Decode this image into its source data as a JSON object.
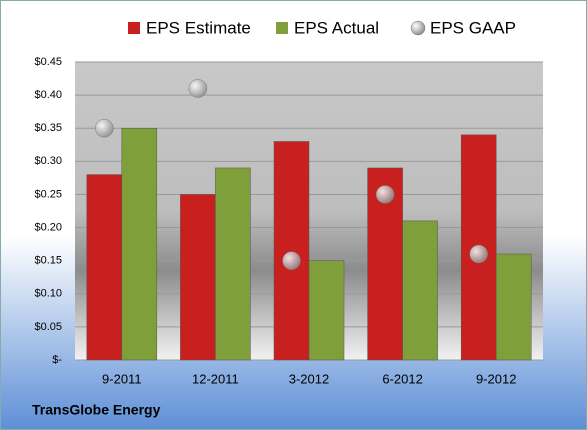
{
  "chart_data": {
    "type": "bar",
    "footer": "TransGlobe Energy",
    "categories": [
      "9-2011",
      "12-2011",
      "3-2012",
      "6-2012",
      "9-2012"
    ],
    "series": [
      {
        "name": "EPS Estimate",
        "color": "#c8201f",
        "values": [
          0.28,
          0.25,
          0.33,
          0.29,
          0.34
        ]
      },
      {
        "name": "EPS Actual",
        "color": "#7f9f3a",
        "values": [
          0.35,
          0.29,
          0.15,
          0.21,
          0.16
        ]
      },
      {
        "name": "EPS GAAP",
        "color": "#a6a6a6",
        "type": "scatter",
        "values": [
          0.35,
          0.41,
          0.15,
          0.25,
          0.16
        ]
      }
    ],
    "ylim": [
      0,
      0.45
    ],
    "yticks": [
      {
        "value": 0,
        "label": "$-"
      },
      {
        "value": 0.05,
        "label": "$0.05"
      },
      {
        "value": 0.1,
        "label": "$0.10"
      },
      {
        "value": 0.15,
        "label": "$0.15"
      },
      {
        "value": 0.2,
        "label": "$0.20"
      },
      {
        "value": 0.25,
        "label": "$0.25"
      },
      {
        "value": 0.3,
        "label": "$0.30"
      },
      {
        "value": 0.35,
        "label": "$0.35"
      },
      {
        "value": 0.4,
        "label": "$0.40"
      },
      {
        "value": 0.45,
        "label": "$0.45"
      }
    ],
    "grid": true,
    "legend": "top"
  }
}
